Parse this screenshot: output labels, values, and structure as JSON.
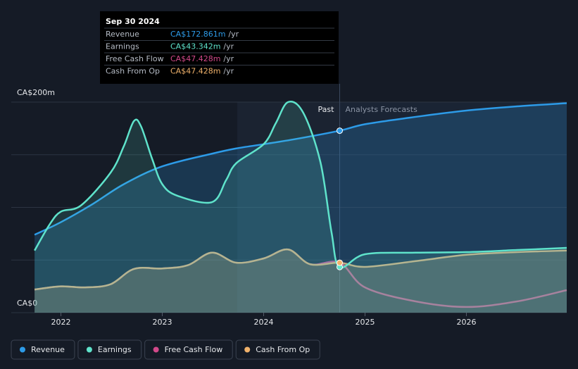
{
  "chart_data": {
    "type": "line",
    "xlim": [
      2021.51,
      2026.99
    ],
    "xticks": [
      2022,
      2023,
      2024,
      2025,
      2026
    ],
    "ylim": [
      0,
      200
    ],
    "yticks": [
      {
        "value": 0,
        "label": "CA$0"
      },
      {
        "value": 200,
        "label": "CA$200m"
      }
    ],
    "ygrid": [
      0,
      50,
      100,
      150,
      200
    ],
    "forecast_start": 2024.75,
    "highlight_start": 2023.74,
    "past_label": "Past",
    "forecast_label": "Analysts Forecasts",
    "series": [
      {
        "name": "Revenue",
        "color": "#2d9be8",
        "x": [
          2021.74,
          2022,
          2022.31,
          2022.62,
          2023,
          2023.49,
          2023.73,
          2024,
          2024.32,
          2024.75,
          2025,
          2025.5,
          2026,
          2026.5,
          2026.99
        ],
        "values": [
          74,
          86,
          103,
          122,
          139,
          151,
          156,
          160,
          165,
          172.861,
          179,
          186,
          192,
          196,
          199
        ]
      },
      {
        "name": "Earnings",
        "color": "#5fe3cb",
        "x": [
          2021.74,
          2021.89,
          2022,
          2022.2,
          2022.49,
          2022.62,
          2022.72,
          2022.79,
          2022.9,
          2023,
          2023.15,
          2023.49,
          2023.63,
          2023.73,
          2024,
          2024.12,
          2024.24,
          2024.39,
          2024.56,
          2024.67,
          2024.75,
          2025,
          2025.5,
          2026,
          2026.5,
          2026.99
        ],
        "values": [
          59,
          84,
          96,
          102,
          133,
          158,
          182,
          177,
          146,
          122,
          111,
          105,
          126,
          142,
          160,
          180,
          200,
          190,
          143,
          76,
          43.342,
          55.5,
          57,
          57.5,
          59.5,
          61.5
        ]
      },
      {
        "name": "Free Cash Flow",
        "color": "#d2498a",
        "x": [
          2021.74,
          2022,
          2022.24,
          2022.49,
          2022.72,
          2023,
          2023.25,
          2023.49,
          2023.73,
          2024,
          2024.24,
          2024.46,
          2024.75,
          2025,
          2025.5,
          2026,
          2026.5,
          2026.99
        ],
        "values": [
          22,
          25,
          24,
          27,
          41.5,
          42,
          45,
          57,
          47.5,
          51.5,
          60,
          46,
          47.428,
          24,
          10.7,
          5.4,
          10.7,
          21.4
        ]
      },
      {
        "name": "Cash From Op",
        "color": "#f0b26b",
        "x": [
          2021.74,
          2022,
          2022.24,
          2022.49,
          2022.72,
          2023,
          2023.25,
          2023.49,
          2023.73,
          2024,
          2024.24,
          2024.46,
          2024.75,
          2025,
          2025.5,
          2026,
          2026.5,
          2026.99
        ],
        "values": [
          22,
          25,
          24,
          27,
          41.5,
          42,
          45,
          57,
          47.5,
          51.5,
          60,
          46,
          47.428,
          43.5,
          49,
          55,
          57.5,
          59
        ]
      }
    ],
    "tooltip": {
      "title": "Sep 30 2024",
      "rows": [
        {
          "label": "Revenue",
          "value": "CA$172.861m",
          "unit": "/yr"
        },
        {
          "label": "Earnings",
          "value": "CA$43.342m",
          "unit": "/yr"
        },
        {
          "label": "Free Cash Flow",
          "value": "CA$47.428m",
          "unit": "/yr"
        },
        {
          "label": "Cash From Op",
          "value": "CA$47.428m",
          "unit": "/yr"
        }
      ]
    }
  }
}
